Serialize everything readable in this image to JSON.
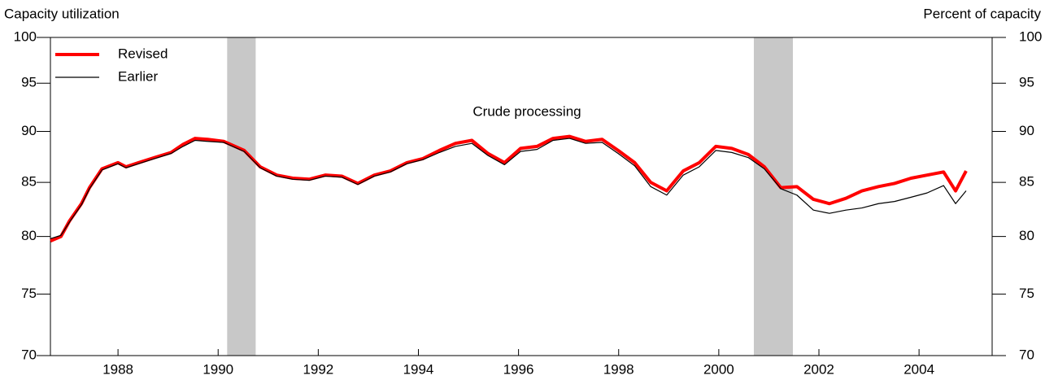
{
  "chart_data": {
    "type": "line",
    "title": "Capacity utilization",
    "y_axis_label": "Percent of capacity",
    "annotation": "Crude processing",
    "log_scale": true,
    "legend": "upper left",
    "xlim": [
      1986.65,
      2005.46
    ],
    "xticks": [
      1988,
      1990,
      1992,
      1994,
      1996,
      1998,
      2000,
      2002,
      2004
    ],
    "ylim": [
      70,
      100
    ],
    "yticks": [
      70,
      75,
      80,
      85,
      90,
      95,
      100
    ],
    "shaded_periods": [
      [
        1990.18,
        1990.75
      ],
      [
        2000.7,
        2001.48
      ]
    ],
    "shade_color": "#c8c8c8",
    "x": [
      1986.65,
      1986.86,
      1987.03,
      1987.27,
      1987.43,
      1987.68,
      1988.0,
      1988.16,
      1988.41,
      1988.73,
      1989.06,
      1989.3,
      1989.54,
      1989.79,
      1990.11,
      1990.52,
      1990.84,
      1991.17,
      1991.49,
      1991.82,
      1992.14,
      1992.47,
      1992.79,
      1993.12,
      1993.44,
      1993.77,
      1994.09,
      1994.42,
      1994.74,
      1995.07,
      1995.39,
      1995.72,
      1996.04,
      1996.37,
      1996.69,
      1997.02,
      1997.34,
      1997.67,
      1997.99,
      1998.32,
      1998.64,
      1998.96,
      1999.29,
      1999.61,
      1999.94,
      2000.26,
      2000.59,
      2000.91,
      2001.24,
      2001.56,
      2001.89,
      2002.21,
      2002.54,
      2002.86,
      2003.19,
      2003.51,
      2003.84,
      2004.16,
      2004.49,
      2004.73,
      2004.94
    ],
    "series": [
      {
        "name": "Revised",
        "color": "#ff0000",
        "values": [
          79.6,
          80.0,
          81.4,
          83.0,
          84.5,
          86.3,
          86.9,
          86.5,
          86.9,
          87.4,
          87.9,
          88.7,
          89.3,
          89.2,
          89.0,
          88.1,
          86.5,
          85.7,
          85.4,
          85.3,
          85.7,
          85.6,
          84.9,
          85.7,
          86.1,
          86.9,
          87.3,
          88.1,
          88.8,
          89.1,
          87.8,
          86.9,
          88.3,
          88.5,
          89.3,
          89.5,
          89.0,
          89.2,
          88.1,
          86.9,
          85.0,
          84.2,
          86.1,
          86.9,
          88.5,
          88.3,
          87.7,
          86.5,
          84.5,
          84.6,
          83.4,
          83.0,
          83.5,
          84.2,
          84.6,
          84.9,
          85.4,
          85.7,
          86.0,
          84.2,
          86.1
        ]
      },
      {
        "name": "Earlier",
        "color": "#000000",
        "values": [
          79.8,
          80.1,
          81.3,
          82.9,
          84.4,
          86.2,
          86.8,
          86.4,
          86.8,
          87.3,
          87.8,
          88.5,
          89.1,
          89.0,
          88.9,
          88.0,
          86.4,
          85.6,
          85.3,
          85.2,
          85.6,
          85.5,
          84.8,
          85.6,
          86.0,
          86.8,
          87.2,
          87.9,
          88.5,
          88.8,
          87.6,
          86.7,
          88.0,
          88.2,
          89.1,
          89.3,
          88.8,
          88.9,
          87.8,
          86.6,
          84.6,
          83.8,
          85.7,
          86.5,
          88.1,
          87.9,
          87.4,
          86.3,
          84.4,
          83.8,
          82.4,
          82.1,
          82.4,
          82.6,
          83.0,
          83.2,
          83.6,
          84.0,
          84.7,
          83.0,
          84.2
        ]
      }
    ]
  }
}
